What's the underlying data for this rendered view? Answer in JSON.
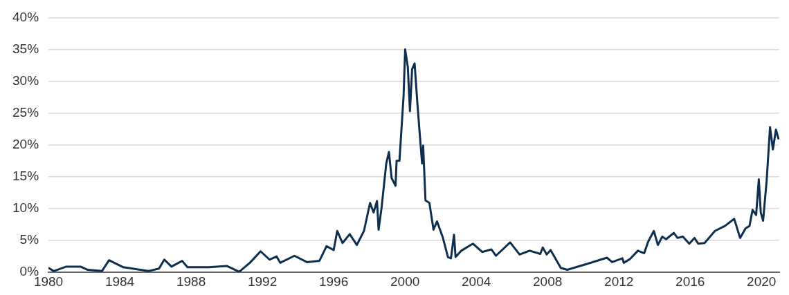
{
  "chart_data": {
    "type": "line",
    "x": [
      1980.0,
      1980.3,
      1981.0,
      1981.8,
      1982.2,
      1983.0,
      1983.4,
      1984.2,
      1985.6,
      1986.2,
      1986.5,
      1986.9,
      1987.5,
      1987.8,
      1989.0,
      1990.0,
      1990.7,
      1991.3,
      1991.9,
      1992.4,
      1992.8,
      1993.0,
      1993.8,
      1994.5,
      1995.2,
      1995.6,
      1996.0,
      1996.2,
      1996.5,
      1996.9,
      1997.3,
      1997.7,
      1998.04,
      1998.24,
      1998.43,
      1998.52,
      1998.69,
      1998.95,
      1999.1,
      1999.25,
      1999.47,
      1999.53,
      1999.69,
      1999.92,
      2000.01,
      2000.16,
      2000.28,
      2000.4,
      2000.54,
      2000.7,
      2000.87,
      2000.96,
      2001.02,
      2001.15,
      2001.37,
      2001.6,
      2001.8,
      2002.12,
      2002.41,
      2002.58,
      2002.75,
      2002.84,
      2003.16,
      2003.81,
      2004.33,
      2004.85,
      2005.1,
      2005.9,
      2006.43,
      2007.0,
      2007.59,
      2007.73,
      2007.95,
      2008.17,
      2008.74,
      2009.1,
      2010.18,
      2011.33,
      2011.62,
      2012.2,
      2012.27,
      2012.63,
      2013.07,
      2013.42,
      2013.64,
      2013.96,
      2014.19,
      2014.43,
      2014.65,
      2015.08,
      2015.29,
      2015.59,
      2015.95,
      2016.24,
      2016.45,
      2016.81,
      2017.39,
      2017.96,
      2018.47,
      2018.8,
      2019.11,
      2019.33,
      2019.5,
      2019.7,
      2019.85,
      2019.96,
      2020.09,
      2020.29,
      2020.48,
      2020.64,
      2020.81,
      2020.95
    ],
    "series": [
      {
        "color": "#0e2f4d",
        "values": [
          0.7,
          0.2,
          0.9,
          0.9,
          0.4,
          0.2,
          1.9,
          0.8,
          0.2,
          0.6,
          2.0,
          0.9,
          1.8,
          0.8,
          0.8,
          1.0,
          0.1,
          1.5,
          3.3,
          2.0,
          2.5,
          1.5,
          2.6,
          1.6,
          1.8,
          4.1,
          3.5,
          6.5,
          4.6,
          6.0,
          4.3,
          6.5,
          10.9,
          9.4,
          11.2,
          6.7,
          10.2,
          17.1,
          18.9,
          14.8,
          13.6,
          17.5,
          17.5,
          27.6,
          35.0,
          32.2,
          25.3,
          31.9,
          32.8,
          26.4,
          20.2,
          17.1,
          19.9,
          11.3,
          10.9,
          6.7,
          8.0,
          5.5,
          2.4,
          2.2,
          5.9,
          2.4,
          3.4,
          4.5,
          3.2,
          3.6,
          2.6,
          4.7,
          2.8,
          3.4,
          2.9,
          3.9,
          2.8,
          3.5,
          0.7,
          0.4,
          1.3,
          2.3,
          1.6,
          2.2,
          1.5,
          2.1,
          3.4,
          3.0,
          4.8,
          6.5,
          4.3,
          5.6,
          5.2,
          6.2,
          5.4,
          5.6,
          4.5,
          5.4,
          4.5,
          4.6,
          6.5,
          7.3,
          8.4,
          5.4,
          6.9,
          7.3,
          9.8,
          9.0,
          14.6,
          9.4,
          8.1,
          14.4,
          22.8,
          19.3,
          22.4,
          21.0
        ]
      }
    ],
    "xlim": [
      1980,
      2021
    ],
    "xticks": [
      1980,
      1984,
      1988,
      1992,
      1996,
      2000,
      2004,
      2008,
      2012,
      2016,
      2020
    ],
    "ylim": [
      0,
      40
    ],
    "yticks": [
      {
        "value": 0,
        "label": "0%"
      },
      {
        "value": 5,
        "label": "5%"
      },
      {
        "value": 10,
        "label": "10%"
      },
      {
        "value": 15,
        "label": "15%"
      },
      {
        "value": 20,
        "label": "20%"
      },
      {
        "value": 25,
        "label": "25%"
      },
      {
        "value": 30,
        "label": "30%"
      },
      {
        "value": 35,
        "label": "35%"
      },
      {
        "value": 40,
        "label": "40%"
      }
    ],
    "grid": "y",
    "legend": false,
    "marker": "none",
    "line_style": "solid"
  }
}
